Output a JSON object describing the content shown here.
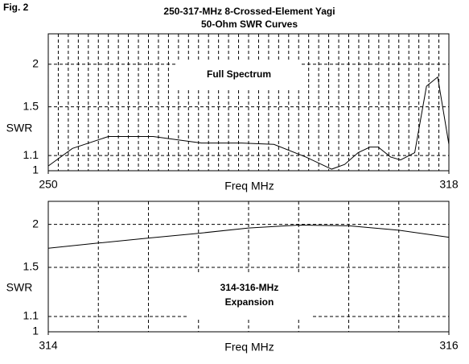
{
  "header": {
    "figure": "Fig. 2",
    "title": [
      "250-317-MHz 8-Crossed-Element Yagi",
      "50-Ohm SWR Curves"
    ]
  },
  "chart_data": [
    {
      "type": "line",
      "annotation": [
        "Full Spectrum"
      ],
      "xlabel": "Freq MHz",
      "ylabel": "SWR",
      "x": [
        250,
        254.1,
        260.2,
        267.8,
        276,
        282.8,
        288.3,
        293.7,
        298.1,
        300.3,
        302.6,
        304.6,
        306,
        308.1,
        309.8,
        312.2,
        314.2,
        316.1,
        318
      ],
      "series": [
        {
          "color": "#000000",
          "values": [
            1.03,
            1.15,
            1.24,
            1.24,
            1.19,
            1.19,
            1.18,
            1.09,
            1.01,
            1.04,
            1.12,
            1.16,
            1.16,
            1.09,
            1.07,
            1.12,
            1.72,
            1.83,
            1.18
          ]
        }
      ],
      "xlim": [
        250,
        318
      ],
      "xticks": [
        250,
        318
      ],
      "ylim": [
        1,
        2.5
      ],
      "yticks": [
        1,
        1.1,
        1.5,
        2
      ],
      "yscale": "reflection",
      "grid": true,
      "xgrid_divisions": 40
    },
    {
      "type": "line",
      "annotation": [
        "314-316-MHz",
        "Expansion"
      ],
      "xlabel": "Freq MHz",
      "ylabel": "SWR",
      "x": [
        314,
        314.25,
        314.5,
        314.75,
        315,
        315.25,
        315.5,
        315.75,
        316
      ],
      "series": [
        {
          "color": "#000000",
          "values": [
            1.7,
            1.76,
            1.82,
            1.88,
            1.95,
            1.99,
            1.98,
            1.92,
            1.83
          ]
        }
      ],
      "xlim": [
        314,
        316
      ],
      "xticks": [
        314,
        316
      ],
      "ylim": [
        1,
        2.36
      ],
      "yticks": [
        1,
        1.1,
        1.5,
        2
      ],
      "yscale": "reflection",
      "grid": true,
      "xgrid_divisions": 8
    }
  ]
}
